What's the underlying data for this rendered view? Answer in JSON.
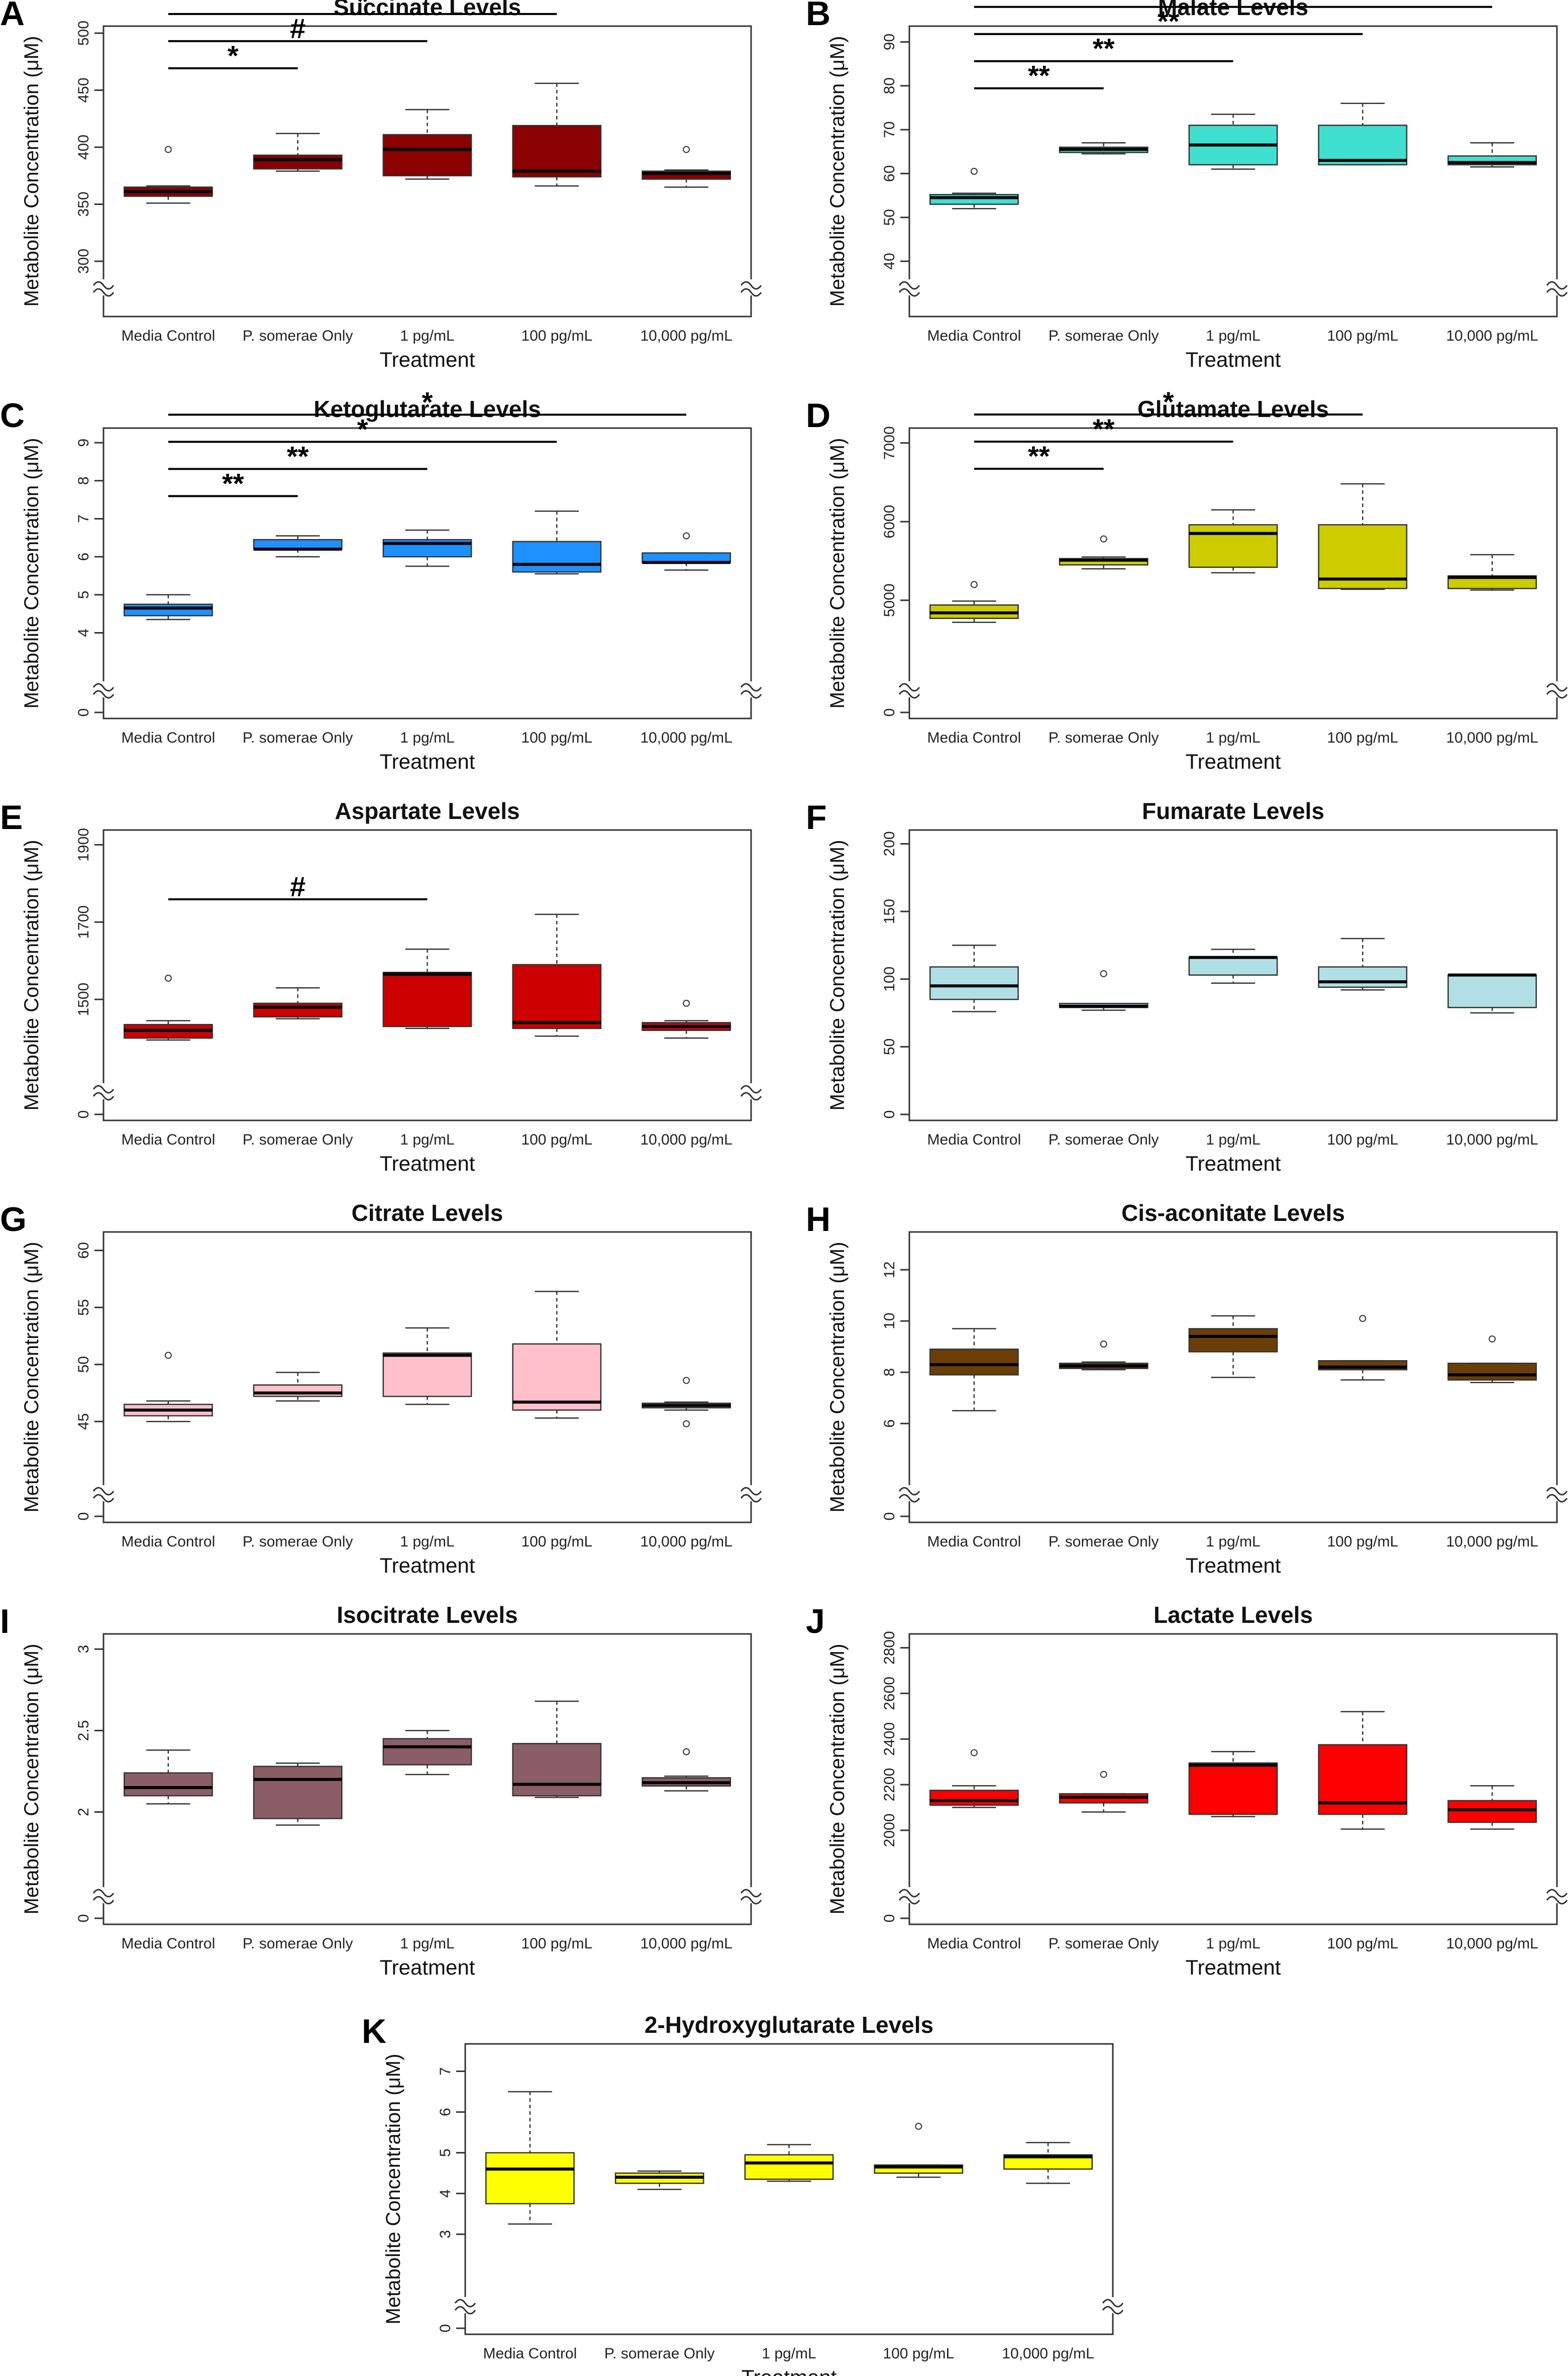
{
  "figure": {
    "categories": [
      "Media Control",
      "P. somerae Only",
      "1 pg/mL",
      "100 pg/mL",
      "10,000 pg/mL"
    ],
    "xlabel": "Treatment",
    "ylabel": "Metabolite Concentration (μM)"
  },
  "chart_data": [
    {
      "type": "box",
      "letter": "A",
      "title": "Succinate Levels",
      "color": "#8b0000",
      "categories": [
        "Media Control",
        "P. somerae Only",
        "1 pg/mL",
        "100 pg/mL",
        "10,000 pg/mL"
      ],
      "xlabel": "Treatment",
      "ylabel": "Metabolite Concentration (μM)",
      "axis_break": true,
      "yticks": [
        300,
        350,
        400,
        450,
        500
      ],
      "ylim": [
        300,
        500
      ],
      "boxes": [
        {
          "min": 351,
          "q1": 357,
          "median": 361,
          "q3": 365,
          "max": 366,
          "outliers": [
            398
          ]
        },
        {
          "min": 379,
          "q1": 381,
          "median": 389,
          "q3": 393,
          "max": 412,
          "outliers": []
        },
        {
          "min": 372,
          "q1": 375,
          "median": 398,
          "q3": 411,
          "max": 433,
          "outliers": []
        },
        {
          "min": 366,
          "q1": 374,
          "median": 379,
          "q3": 419,
          "max": 456,
          "outliers": []
        },
        {
          "min": 365,
          "q1": 372,
          "median": 377,
          "q3": 379,
          "max": 380,
          "outliers": [
            398
          ]
        }
      ],
      "significance": [
        {
          "from": 0,
          "to": 1,
          "label": "*"
        },
        {
          "from": 0,
          "to": 2,
          "label": "#"
        },
        {
          "from": 0,
          "to": 3,
          "label": "*"
        }
      ]
    },
    {
      "type": "box",
      "letter": "B",
      "title": "Malate Levels",
      "color": "#40e0d0",
      "categories": [
        "Media Control",
        "P. somerae Only",
        "1 pg/mL",
        "100 pg/mL",
        "10,000 pg/mL"
      ],
      "xlabel": "Treatment",
      "ylabel": "Metabolite Concentration (μM)",
      "axis_break": true,
      "yticks": [
        40,
        50,
        60,
        70,
        80,
        90
      ],
      "ylim": [
        40,
        92
      ],
      "boxes": [
        {
          "min": 52,
          "q1": 53,
          "median": 54.5,
          "q3": 55.2,
          "max": 55.5,
          "outliers": [
            60.5
          ]
        },
        {
          "min": 64.5,
          "q1": 64.8,
          "median": 65.5,
          "q3": 66,
          "max": 67,
          "outliers": []
        },
        {
          "min": 61,
          "q1": 62,
          "median": 66.5,
          "q3": 71,
          "max": 73.5,
          "outliers": []
        },
        {
          "min": 62,
          "q1": 62,
          "median": 63,
          "q3": 71,
          "max": 76,
          "outliers": []
        },
        {
          "min": 61.5,
          "q1": 62,
          "median": 62.5,
          "q3": 64,
          "max": 67,
          "outliers": []
        }
      ],
      "significance": [
        {
          "from": 0,
          "to": 1,
          "label": "**"
        },
        {
          "from": 0,
          "to": 2,
          "label": "**"
        },
        {
          "from": 0,
          "to": 3,
          "label": "**"
        },
        {
          "from": 0,
          "to": 4,
          "label": "*"
        }
      ]
    },
    {
      "type": "box",
      "letter": "C",
      "title": "Ketoglutarate Levels",
      "color": "#1e90ff",
      "categories": [
        "Media Control",
        "P. somerae Only",
        "1 pg/mL",
        "100 pg/mL",
        "10,000 pg/mL"
      ],
      "xlabel": "Treatment",
      "ylabel": "Metabolite Concentration (μM)",
      "axis_break": true,
      "yticks": [
        0,
        4,
        5,
        6,
        7,
        8,
        9
      ],
      "ylim": [
        3.2,
        9.2
      ],
      "boxes": [
        {
          "min": 4.35,
          "q1": 4.45,
          "median": 4.65,
          "q3": 4.75,
          "max": 5.0,
          "outliers": []
        },
        {
          "min": 6.0,
          "q1": 6.2,
          "median": 6.2,
          "q3": 6.45,
          "max": 6.55,
          "outliers": []
        },
        {
          "min": 5.75,
          "q1": 6.0,
          "median": 6.35,
          "q3": 6.45,
          "max": 6.7,
          "outliers": []
        },
        {
          "min": 5.55,
          "q1": 5.6,
          "median": 5.8,
          "q3": 6.4,
          "max": 7.2,
          "outliers": []
        },
        {
          "min": 5.65,
          "q1": 5.85,
          "median": 5.85,
          "q3": 6.1,
          "max": 6.1,
          "outliers": [
            6.55
          ]
        }
      ],
      "significance": [
        {
          "from": 0,
          "to": 1,
          "label": "**"
        },
        {
          "from": 0,
          "to": 2,
          "label": "**"
        },
        {
          "from": 0,
          "to": 3,
          "label": "*"
        },
        {
          "from": 0,
          "to": 4,
          "label": "*"
        }
      ]
    },
    {
      "type": "box",
      "letter": "D",
      "title": "Glutamate Levels",
      "color": "#cccc00",
      "categories": [
        "Media Control",
        "P. somerae Only",
        "1 pg/mL",
        "100 pg/mL",
        "10,000 pg/mL"
      ],
      "xlabel": "Treatment",
      "ylabel": "Metabolite Concentration (μM)",
      "axis_break": true,
      "yticks": [
        0,
        5000,
        6000,
        7000
      ],
      "ylim": [
        4200,
        7100
      ],
      "boxes": [
        {
          "min": 4720,
          "q1": 4770,
          "median": 4840,
          "q3": 4940,
          "max": 4990,
          "outliers": [
            5200
          ]
        },
        {
          "min": 5400,
          "q1": 5450,
          "median": 5510,
          "q3": 5530,
          "max": 5550,
          "outliers": [
            5780
          ]
        },
        {
          "min": 5350,
          "q1": 5420,
          "median": 5850,
          "q3": 5960,
          "max": 6150,
          "outliers": []
        },
        {
          "min": 5140,
          "q1": 5150,
          "median": 5270,
          "q3": 5960,
          "max": 6480,
          "outliers": []
        },
        {
          "min": 5130,
          "q1": 5150,
          "median": 5290,
          "q3": 5310,
          "max": 5580,
          "outliers": []
        }
      ],
      "significance": [
        {
          "from": 0,
          "to": 1,
          "label": "**"
        },
        {
          "from": 0,
          "to": 2,
          "label": "**"
        },
        {
          "from": 0,
          "to": 3,
          "label": "*"
        }
      ]
    },
    {
      "type": "box",
      "letter": "E",
      "title": "Aspartate Levels",
      "color": "#cc0000",
      "categories": [
        "Media Control",
        "P. somerae Only",
        "1 pg/mL",
        "100 pg/mL",
        "10,000 pg/mL"
      ],
      "xlabel": "Treatment",
      "ylabel": "Metabolite Concentration (μM)",
      "axis_break": true,
      "yticks": [
        0,
        1500,
        1700,
        1900
      ],
      "ylim": [
        1330,
        1920
      ],
      "boxes": [
        {
          "min": 1395,
          "q1": 1400,
          "median": 1420,
          "q3": 1435,
          "max": 1445,
          "outliers": [
            1555
          ]
        },
        {
          "min": 1450,
          "q1": 1455,
          "median": 1480,
          "q3": 1490,
          "max": 1530,
          "outliers": []
        },
        {
          "min": 1425,
          "q1": 1430,
          "median": 1565,
          "q3": 1570,
          "max": 1630,
          "outliers": []
        },
        {
          "min": 1405,
          "q1": 1425,
          "median": 1440,
          "q3": 1590,
          "max": 1720,
          "outliers": []
        },
        {
          "min": 1400,
          "q1": 1420,
          "median": 1430,
          "q3": 1440,
          "max": 1445,
          "outliers": [
            1490
          ]
        }
      ],
      "significance": [
        {
          "from": 0,
          "to": 2,
          "label": "#"
        }
      ]
    },
    {
      "type": "box",
      "letter": "F",
      "title": "Fumarate Levels",
      "color": "#b0e0e6",
      "categories": [
        "Media Control",
        "P. somerae Only",
        "1 pg/mL",
        "100 pg/mL",
        "10,000 pg/mL"
      ],
      "xlabel": "Treatment",
      "ylabel": "Metabolite Concentration (μM)",
      "axis_break": false,
      "yticks": [
        0,
        50,
        100,
        150,
        200
      ],
      "ylim": [
        0,
        205
      ],
      "boxes": [
        {
          "min": 76,
          "q1": 85,
          "median": 95,
          "q3": 109,
          "max": 125,
          "outliers": []
        },
        {
          "min": 77,
          "q1": 79,
          "median": 80,
          "q3": 82,
          "max": 82,
          "outliers": [
            104
          ]
        },
        {
          "min": 97,
          "q1": 103,
          "median": 116,
          "q3": 116,
          "max": 122,
          "outliers": []
        },
        {
          "min": 92,
          "q1": 94,
          "median": 98,
          "q3": 109,
          "max": 130,
          "outliers": []
        },
        {
          "min": 75,
          "q1": 79,
          "median": 103,
          "q3": 103,
          "max": 103,
          "outliers": []
        }
      ],
      "significance": []
    },
    {
      "type": "box",
      "letter": "G",
      "title": "Citrate Levels",
      "color": "#ffc0cb",
      "categories": [
        "Media Control",
        "P. somerae Only",
        "1 pg/mL",
        "100 pg/mL",
        "10,000 pg/mL"
      ],
      "xlabel": "Treatment",
      "ylabel": "Metabolite Concentration (μM)",
      "axis_break": true,
      "yticks": [
        0,
        45,
        50,
        55,
        60
      ],
      "ylim": [
        41,
        61
      ],
      "boxes": [
        {
          "min": 45.0,
          "q1": 45.5,
          "median": 46.0,
          "q3": 46.5,
          "max": 46.8,
          "outliers": [
            50.8
          ]
        },
        {
          "min": 46.8,
          "q1": 47.2,
          "median": 47.5,
          "q3": 48.2,
          "max": 49.3,
          "outliers": []
        },
        {
          "min": 46.5,
          "q1": 47.2,
          "median": 50.8,
          "q3": 51.0,
          "max": 53.2,
          "outliers": []
        },
        {
          "min": 45.3,
          "q1": 46.0,
          "median": 46.7,
          "q3": 51.8,
          "max": 56.4,
          "outliers": []
        },
        {
          "min": 46.0,
          "q1": 46.2,
          "median": 46.4,
          "q3": 46.6,
          "max": 46.7,
          "outliers": [
            48.6,
            44.8
          ]
        }
      ],
      "significance": []
    },
    {
      "type": "box",
      "letter": "H",
      "title": "Cis-aconitate Levels",
      "color": "#6b3e07",
      "categories": [
        "Media Control",
        "P. somerae Only",
        "1 pg/mL",
        "100 pg/mL",
        "10,000 pg/mL"
      ],
      "xlabel": "Treatment",
      "ylabel": "Metabolite Concentration (μM)",
      "axis_break": true,
      "yticks": [
        0,
        6,
        8,
        10,
        12
      ],
      "ylim": [
        4.3,
        13.2
      ],
      "boxes": [
        {
          "min": 6.5,
          "q1": 7.9,
          "median": 8.3,
          "q3": 8.9,
          "max": 9.7,
          "outliers": []
        },
        {
          "min": 8.1,
          "q1": 8.15,
          "median": 8.25,
          "q3": 8.35,
          "max": 8.4,
          "outliers": [
            9.1
          ]
        },
        {
          "min": 7.8,
          "q1": 8.8,
          "median": 9.4,
          "q3": 9.7,
          "max": 10.2,
          "outliers": []
        },
        {
          "min": 7.7,
          "q1": 8.1,
          "median": 8.2,
          "q3": 8.45,
          "max": 8.45,
          "outliers": [
            10.1
          ]
        },
        {
          "min": 7.6,
          "q1": 7.7,
          "median": 7.9,
          "q3": 8.35,
          "max": 8.35,
          "outliers": [
            9.3
          ]
        }
      ],
      "significance": []
    },
    {
      "type": "box",
      "letter": "I",
      "title": "Isocitrate Levels",
      "color": "#8b5e67",
      "categories": [
        "Media Control",
        "P. somerae Only",
        "1 pg/mL",
        "100 pg/mL",
        "10,000 pg/mL"
      ],
      "xlabel": "Treatment",
      "ylabel": "Metabolite Concentration (μM)",
      "axis_break": true,
      "yticks": [
        0,
        2.0,
        2.5,
        3.0
      ],
      "ylim": [
        1.65,
        3.05
      ],
      "boxes": [
        {
          "min": 2.05,
          "q1": 2.1,
          "median": 2.15,
          "q3": 2.24,
          "max": 2.38,
          "outliers": []
        },
        {
          "min": 1.92,
          "q1": 1.96,
          "median": 2.2,
          "q3": 2.28,
          "max": 2.3,
          "outliers": []
        },
        {
          "min": 2.23,
          "q1": 2.29,
          "median": 2.4,
          "q3": 2.45,
          "max": 2.5,
          "outliers": []
        },
        {
          "min": 2.09,
          "q1": 2.1,
          "median": 2.17,
          "q3": 2.42,
          "max": 2.68,
          "outliers": []
        },
        {
          "min": 2.13,
          "q1": 2.16,
          "median": 2.18,
          "q3": 2.21,
          "max": 2.22,
          "outliers": [
            2.37
          ]
        }
      ],
      "significance": []
    },
    {
      "type": "box",
      "letter": "J",
      "title": "Lactate Levels",
      "color": "#ff0000",
      "categories": [
        "Media Control",
        "P. somerae Only",
        "1 pg/mL",
        "100 pg/mL",
        "10,000 pg/mL"
      ],
      "xlabel": "Treatment",
      "ylabel": "Metabolite Concentration (μM)",
      "axis_break": true,
      "yticks": [
        0,
        2000,
        2200,
        2400,
        2600,
        2800
      ],
      "ylim": [
        1830,
        2830
      ],
      "boxes": [
        {
          "min": 2100,
          "q1": 2110,
          "median": 2130,
          "q3": 2175,
          "max": 2195,
          "outliers": [
            2340
          ]
        },
        {
          "min": 2080,
          "q1": 2120,
          "median": 2145,
          "q3": 2160,
          "max": 2160,
          "outliers": [
            2245
          ]
        },
        {
          "min": 2060,
          "q1": 2070,
          "median": 2285,
          "q3": 2295,
          "max": 2345,
          "outliers": []
        },
        {
          "min": 2005,
          "q1": 2070,
          "median": 2120,
          "q3": 2375,
          "max": 2520,
          "outliers": []
        },
        {
          "min": 2005,
          "q1": 2035,
          "median": 2090,
          "q3": 2130,
          "max": 2195,
          "outliers": []
        }
      ],
      "significance": []
    },
    {
      "type": "box",
      "letter": "K",
      "title": "2-Hydroxyglutarate Levels",
      "color": "#ffff00",
      "categories": [
        "Media Control",
        "P. somerae Only",
        "1 pg/mL",
        "100 pg/mL",
        "10,000 pg/mL"
      ],
      "xlabel": "Treatment",
      "ylabel": "Metabolite Concentration (μM)",
      "axis_break": true,
      "yticks": [
        0,
        3,
        4,
        5,
        6,
        7
      ],
      "ylim": [
        1.9,
        7.5
      ],
      "boxes": [
        {
          "min": 3.25,
          "q1": 3.75,
          "median": 4.6,
          "q3": 5.0,
          "max": 6.5,
          "outliers": []
        },
        {
          "min": 4.1,
          "q1": 4.25,
          "median": 4.4,
          "q3": 4.5,
          "max": 4.55,
          "outliers": []
        },
        {
          "min": 4.3,
          "q1": 4.35,
          "median": 4.75,
          "q3": 4.95,
          "max": 5.2,
          "outliers": []
        },
        {
          "min": 4.4,
          "q1": 4.5,
          "median": 4.65,
          "q3": 4.7,
          "max": 4.7,
          "outliers": [
            5.65
          ]
        },
        {
          "min": 4.25,
          "q1": 4.6,
          "median": 4.9,
          "q3": 4.95,
          "max": 5.25,
          "outliers": []
        }
      ],
      "significance": []
    }
  ]
}
